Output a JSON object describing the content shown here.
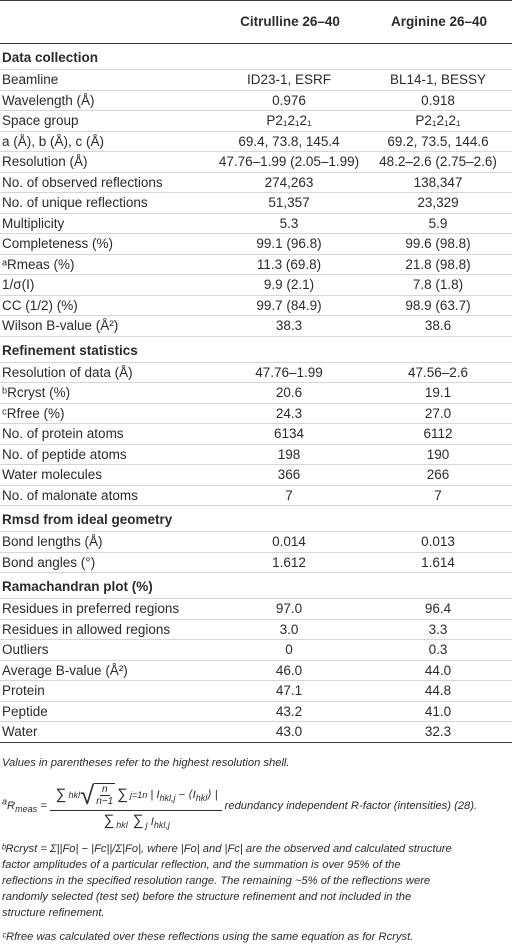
{
  "header": {
    "col0": "",
    "col1": "Citrulline 26–40",
    "col2": "Arginine 26–40"
  },
  "sections": [
    {
      "title": "Data collection",
      "rows": [
        {
          "label": "Beamline",
          "v1": "ID23-1, ESRF",
          "v2": "BL14-1, BESSY"
        },
        {
          "label": "Wavelength (Å)",
          "v1": "0.976",
          "v2": "0.918"
        },
        {
          "label": "Space group",
          "v1": "P2₁2₁2₁",
          "v2": "P2₁2₁2₁"
        },
        {
          "label": "a (Å), b (Å), c (Å)",
          "v1": "69.4, 73.8, 145.4",
          "v2": "69.2, 73.5, 144.6"
        },
        {
          "label": "Resolution (Å)",
          "v1": "47.76–1.99 (2.05–1.99)",
          "v2": "48.2–2.6 (2.75–2.6)"
        },
        {
          "label": "No. of observed reflections",
          "v1": "274,263",
          "v2": "138,347"
        },
        {
          "label": "No. of unique reflections",
          "v1": "51,357",
          "v2": "23,329"
        },
        {
          "label": "Multiplicity",
          "v1": "5.3",
          "v2": "5.9"
        },
        {
          "label": "Completeness (%)",
          "v1": "99.1 (96.8)",
          "v2": "99.6 (98.8)"
        },
        {
          "label": "ᵃRmeas (%)",
          "v1": "11.3 (69.8)",
          "v2": "21.8 (98.8)"
        },
        {
          "label": "1/σ(I)",
          "v1": "9.9 (2.1)",
          "v2": "7.8 (1.8)"
        },
        {
          "label": "CC (1/2) (%)",
          "v1": "99.7 (84.9)",
          "v2": "98.9 (63.7)"
        },
        {
          "label": "Wilson B-value (Å²)",
          "v1": "38.3",
          "v2": "38.6"
        }
      ]
    },
    {
      "title": "Refinement statistics",
      "rows": [
        {
          "label": "Resolution of data (Å)",
          "v1": "47.76–1.99",
          "v2": "47.56–2.6"
        },
        {
          "label": "ᵇRcryst (%)",
          "v1": "20.6",
          "v2": "19.1"
        },
        {
          "label": "ᶜRfree (%)",
          "v1": "24.3",
          "v2": "27.0"
        },
        {
          "label": "No. of protein atoms",
          "v1": "6134",
          "v2": "6112"
        },
        {
          "label": "No. of peptide atoms",
          "v1": "198",
          "v2": "190"
        },
        {
          "label": "Water molecules",
          "v1": "366",
          "v2": "266"
        },
        {
          "label": "No. of malonate atoms",
          "v1": "7",
          "v2": "7"
        }
      ]
    },
    {
      "title": "Rmsd from ideal geometry",
      "rows": [
        {
          "label": "Bond lengths (Å)",
          "v1": "0.014",
          "v2": "0.013"
        },
        {
          "label": "Bond angles (°)",
          "v1": "1.612",
          "v2": "1.614"
        }
      ]
    },
    {
      "title": "Ramachandran plot (%)",
      "rows": [
        {
          "label": "Residues in preferred regions",
          "v1": "97.0",
          "v2": "96.4"
        },
        {
          "label": "Residues in allowed regions",
          "v1": "3.0",
          "v2": "3.3"
        },
        {
          "label": "Outliers",
          "v1": "0",
          "v2": "0.3"
        },
        {
          "label": "Average B-value (Å²)",
          "v1": "46.0",
          "v2": "44.0"
        },
        {
          "label": "Protein",
          "v1": "47.1",
          "v2": "44.8"
        },
        {
          "label": "Peptide",
          "v1": "43.2",
          "v2": "41.0"
        },
        {
          "label": "Water",
          "v1": "43.0",
          "v2": "32.3"
        }
      ]
    }
  ],
  "footnotes": {
    "note_parentheses": "Values in parentheses refer to the highest resolution shell.",
    "note_a_suffix": "redundancy independent R-factor (intensities) (28).",
    "note_b_lines": [
      "ᵇRcryst = Σ||Fo| − |Fc||/Σ|Fo|, where |Fo| and |Fc| are the observed and calculated structure",
      "factor amplitudes of a particular reflection, and the summation is over 95% of the",
      "reflections in the specified resolution range. The remaining ~5% of the reflections were",
      "randomly selected (test set) before the structure refinement and not included in the",
      "structure refinement."
    ],
    "note_c": "ᶜRfree was calculated over these reflections using the same equation as for Rcryst."
  }
}
